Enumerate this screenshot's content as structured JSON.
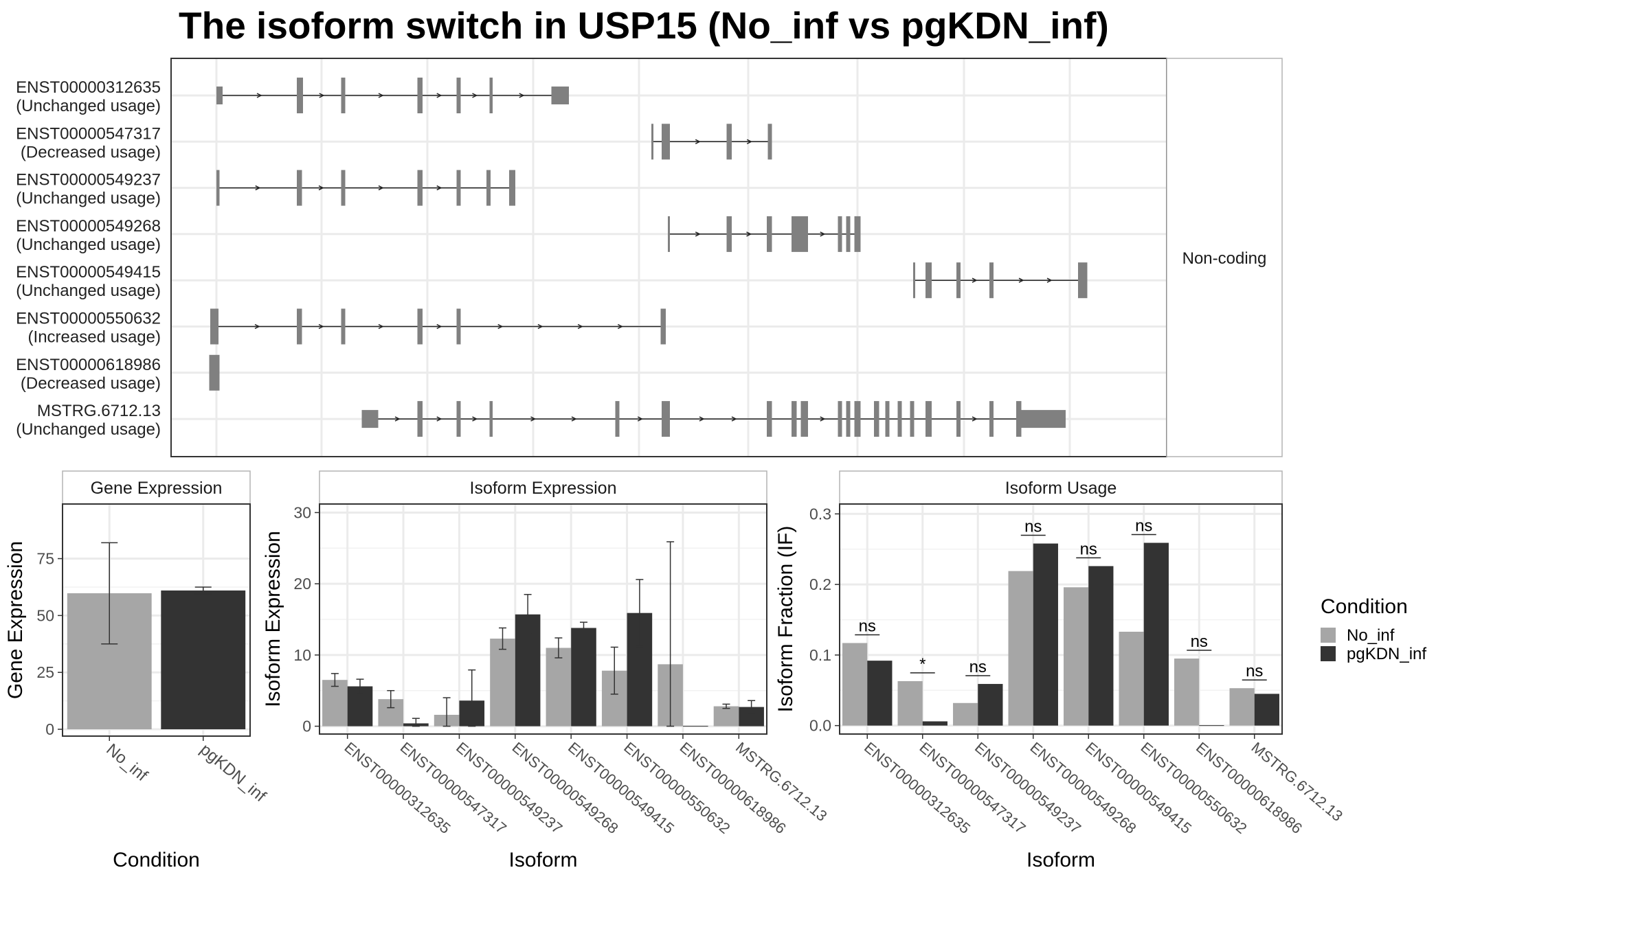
{
  "title": "The isoform switch in USP15 (No_inf vs pgKDN_inf)",
  "colors": {
    "no_inf": "#a6a6a6",
    "pgkdn_inf": "#333333",
    "exon": "#808080",
    "grid": "#ebebeb",
    "strip": "#ffffff",
    "frame": "#333333"
  },
  "structure": {
    "side_label": "Non-coding",
    "isoforms": [
      {
        "id": "ENST00000312635",
        "usage": "(Unchanged usage)",
        "exons": [
          [
            210,
            216
          ],
          [
            288,
            294
          ],
          [
            331,
            335
          ],
          [
            405,
            410
          ],
          [
            443,
            447
          ],
          [
            475,
            478
          ],
          [
            535,
            552
          ]
        ],
        "tall": [
          0,
          1,
          1,
          1,
          1,
          1,
          0
        ]
      },
      {
        "id": "ENST00000547317",
        "usage": "(Decreased usage)",
        "exons": [
          [
            632,
            634
          ],
          [
            642,
            650
          ],
          [
            705,
            710
          ],
          [
            745,
            749
          ]
        ],
        "tall": [
          1,
          1,
          1,
          1
        ]
      },
      {
        "id": "ENST00000549237",
        "usage": "(Unchanged usage)",
        "exons": [
          [
            210,
            213
          ],
          [
            288,
            293
          ],
          [
            331,
            335
          ],
          [
            405,
            410
          ],
          [
            443,
            447
          ],
          [
            472,
            476
          ],
          [
            494,
            500
          ]
        ],
        "tall": [
          1,
          1,
          1,
          1,
          1,
          1,
          1
        ]
      },
      {
        "id": "ENST00000549268",
        "usage": "(Unchanged usage)",
        "exons": [
          [
            648,
            650
          ],
          [
            705,
            710
          ],
          [
            744,
            749
          ],
          [
            768,
            784
          ],
          [
            813,
            817
          ],
          [
            821,
            825
          ],
          [
            829,
            835
          ]
        ],
        "tall": [
          1,
          1,
          1,
          1,
          1,
          1,
          1
        ]
      },
      {
        "id": "ENST00000549415",
        "usage": "(Unchanged usage)",
        "exons": [
          [
            886,
            888
          ],
          [
            898,
            904
          ],
          [
            928,
            932
          ],
          [
            960,
            964
          ],
          [
            1046,
            1055
          ]
        ],
        "tall": [
          1,
          1,
          1,
          1,
          1
        ]
      },
      {
        "id": "ENST00000550632",
        "usage": "(Increased usage)",
        "exons": [
          [
            204,
            212
          ],
          [
            288,
            293
          ],
          [
            331,
            335
          ],
          [
            405,
            410
          ],
          [
            443,
            447
          ],
          [
            641,
            646
          ]
        ],
        "tall": [
          1,
          1,
          1,
          1,
          1,
          1
        ]
      },
      {
        "id": "ENST00000618986",
        "usage": "(Decreased usage)",
        "exons": [
          [
            203,
            213
          ]
        ],
        "tall": [
          1
        ]
      },
      {
        "id": "MSTRG.6712.13",
        "usage": "(Unchanged usage)",
        "exons": [
          [
            351,
            367
          ],
          [
            405,
            410
          ],
          [
            443,
            447
          ],
          [
            475,
            478
          ],
          [
            597,
            601
          ],
          [
            642,
            650
          ],
          [
            744,
            749
          ],
          [
            768,
            773
          ],
          [
            777,
            784
          ],
          [
            813,
            817
          ],
          [
            821,
            825
          ],
          [
            829,
            835
          ],
          [
            848,
            853
          ],
          [
            859,
            863
          ],
          [
            871,
            875
          ],
          [
            883,
            887
          ],
          [
            898,
            904
          ],
          [
            928,
            932
          ],
          [
            960,
            964
          ],
          [
            986,
            991
          ],
          [
            991,
            1034
          ]
        ],
        "tall": [
          0,
          1,
          1,
          1,
          1,
          1,
          1,
          1,
          1,
          1,
          1,
          1,
          1,
          1,
          1,
          1,
          1,
          1,
          1,
          1,
          0
        ]
      }
    ]
  },
  "chart_data": [
    {
      "type": "bar",
      "title": "Gene Expression",
      "xlabel": "Condition",
      "ylabel": "Gene Expression",
      "categories": [
        "No_inf",
        "pgKDN_inf"
      ],
      "values": [
        59.8,
        61.0
      ],
      "err_low": [
        37.5,
        59.5
      ],
      "err_high": [
        82.0,
        62.5
      ],
      "ylim": [
        -3,
        99
      ],
      "yticks": [
        "0",
        "25",
        "50",
        "75"
      ]
    },
    {
      "type": "bar",
      "title": "Isoform Expression",
      "xlabel": "Isoform",
      "ylabel": "Isoform Expression",
      "categories": [
        "ENST00000312635",
        "ENST00000547317",
        "ENST00000549237",
        "ENST00000549268",
        "ENST00000549415",
        "ENST00000550632",
        "ENST00000618986",
        "MSTRG.6712.13"
      ],
      "series": [
        {
          "name": "No_inf",
          "values": [
            6.5,
            3.8,
            1.6,
            12.3,
            11.0,
            7.8,
            8.7,
            2.8
          ],
          "err_low": [
            5.6,
            2.6,
            0.0,
            10.8,
            9.6,
            4.5,
            0.0,
            2.5
          ],
          "err_high": [
            7.4,
            5.0,
            4.0,
            13.8,
            12.4,
            11.1,
            25.9,
            3.1
          ]
        },
        {
          "name": "pgKDN_inf",
          "values": [
            5.6,
            0.4,
            3.6,
            15.7,
            13.8,
            15.9,
            0.0,
            2.7
          ],
          "err_low": [
            4.6,
            0.0,
            0.0,
            13.0,
            13.0,
            11.2,
            0.0,
            1.8
          ],
          "err_high": [
            6.6,
            1.1,
            7.9,
            18.5,
            14.6,
            20.6,
            0.0,
            3.6
          ]
        }
      ],
      "ylim": [
        -1.1,
        31.2
      ],
      "yticks": [
        "0",
        "10",
        "20",
        "30"
      ]
    },
    {
      "type": "bar",
      "title": "Isoform Usage",
      "xlabel": "Isoform",
      "ylabel": "Isoform Fraction (IF)",
      "categories": [
        "ENST00000312635",
        "ENST00000547317",
        "ENST00000549237",
        "ENST00000549268",
        "ENST00000549415",
        "ENST00000550632",
        "ENST00000618986",
        "MSTRG.6712.13"
      ],
      "series": [
        {
          "name": "No_inf",
          "values": [
            0.117,
            0.063,
            0.032,
            0.219,
            0.196,
            0.133,
            0.095,
            0.053
          ]
        },
        {
          "name": "pgKDN_inf",
          "values": [
            0.092,
            0.006,
            0.059,
            0.258,
            0.226,
            0.259,
            0.0,
            0.045
          ]
        }
      ],
      "significance": [
        "ns",
        "*",
        "ns",
        "ns",
        "ns",
        "ns",
        "ns",
        "ns"
      ],
      "ylim": [
        -0.012,
        0.314
      ],
      "yticks": [
        "0.0",
        "0.1",
        "0.2",
        "0.3"
      ]
    }
  ],
  "legend": {
    "title": "Condition",
    "items": [
      "No_inf",
      "pgKDN_inf"
    ]
  }
}
